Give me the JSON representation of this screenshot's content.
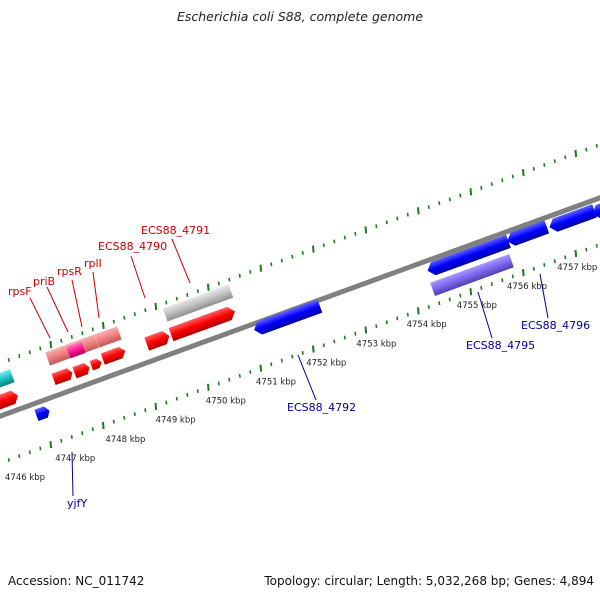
{
  "title": "Escherichia coli S88, complete genome",
  "footer": {
    "accession": "Accession: NC_011742",
    "topology": "Topology: circular; Length: 5,032,268 bp; Genes: 4,894"
  },
  "colors": {
    "forward_gene": "#ff0000",
    "forward_gene_light": "#f08080",
    "forward_gene_magenta": "#ff1493",
    "reverse_gene": "#0000ff",
    "reverse_gene_violet": "#7b68ee",
    "pseudo_gene": "#c0c0c0",
    "cyan_gene": "#20c0c0",
    "backbone": "#808080",
    "tick": "#1a7a1a",
    "forward_label": "#cc0000",
    "reverse_label": "#000099"
  },
  "ticks": [
    "4746 kbp",
    "4747 kbp",
    "4748 kbp",
    "4749 kbp",
    "4750 kbp",
    "4751 kbp",
    "4752 kbp",
    "4753 kbp",
    "4754 kbp",
    "4755 kbp",
    "4756 kbp",
    "4757 kbp"
  ],
  "forward_labels": [
    "rpsF",
    "priB",
    "rpsR",
    "rplI",
    "ECS88_4790",
    "ECS88_4791"
  ],
  "reverse_labels": [
    "yjfY",
    "ECS88_4792",
    "ECS88_4795",
    "ECS88_4796"
  ]
}
